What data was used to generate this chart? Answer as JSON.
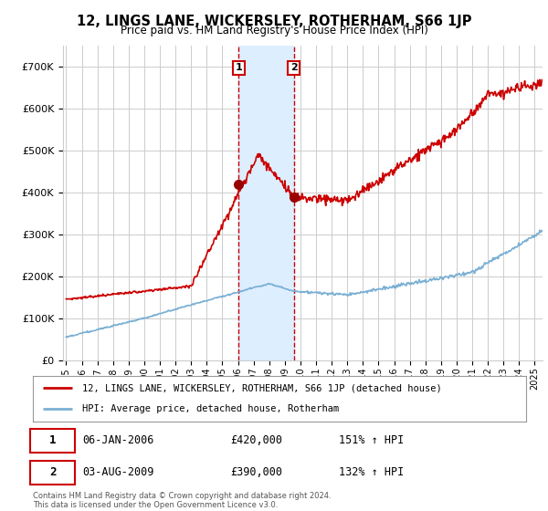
{
  "title": "12, LINGS LANE, WICKERSLEY, ROTHERHAM, S66 1JP",
  "subtitle": "Price paid vs. HM Land Registry's House Price Index (HPI)",
  "hpi_color": "#7ab0d4",
  "price_color": "#cc0000",
  "marker_color": "#990000",
  "background_color": "#ffffff",
  "grid_color": "#cccccc",
  "highlight_fill": "#ddeeff",
  "sale1_date_num": 2006.04,
  "sale1_price": 420000,
  "sale1_label": "1",
  "sale1_date_str": "06-JAN-2006",
  "sale1_hpi_pct": "151% ↑ HPI",
  "sale2_date_num": 2009.58,
  "sale2_price": 390000,
  "sale2_label": "2",
  "sale2_date_str": "03-AUG-2009",
  "sale2_hpi_pct": "132% ↑ HPI",
  "ylim": [
    0,
    750000
  ],
  "xlim_start": 1994.8,
  "xlim_end": 2025.5,
  "legend_line1": "12, LINGS LANE, WICKERSLEY, ROTHERHAM, S66 1JP (detached house)",
  "legend_line2": "HPI: Average price, detached house, Rotherham",
  "footer": "Contains HM Land Registry data © Crown copyright and database right 2024.\nThis data is licensed under the Open Government Licence v3.0."
}
